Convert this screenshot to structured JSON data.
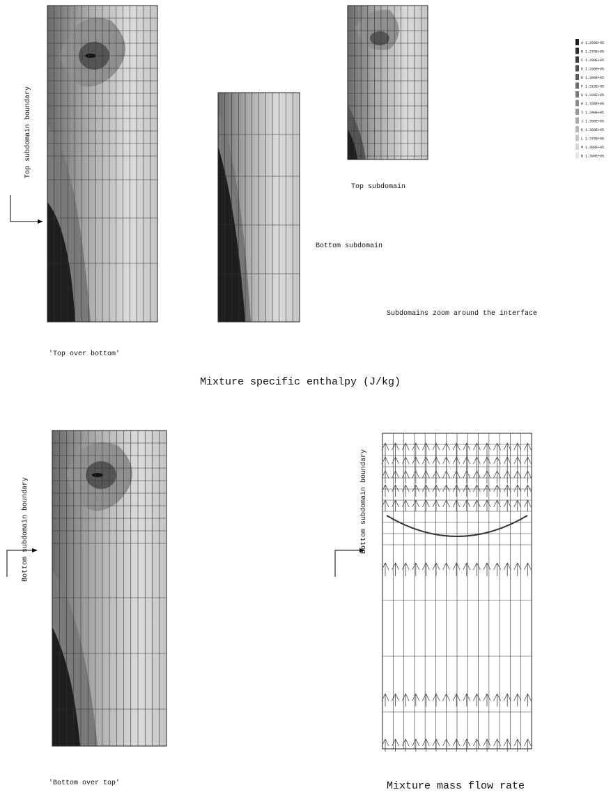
{
  "labels": {
    "top_boundary": "Top subdomain boundary",
    "top_subdomain": "Top subdomain",
    "bottom_subdomain": "Bottom subdomain",
    "zoom_note": "Subdomains zoom around the interface",
    "top_over_bottom": "'Top over bottom'",
    "enthalpy_title": "Mixture specific enthalpy (J/kg)",
    "bottom_boundary_left": "Bottom subdomain boundary",
    "bottom_boundary_right": "Bottom subdomain boundary",
    "bottom_over_top": "'Bottom over top'",
    "flow_title": "Mixture mass flow rate"
  },
  "legend": [
    {
      "key": "A",
      "label": "1.260E+05"
    },
    {
      "key": "B",
      "label": "1.270E+05"
    },
    {
      "key": "C",
      "label": "1.280E+05"
    },
    {
      "key": "D",
      "label": "1.290E+05"
    },
    {
      "key": "E",
      "label": "1.300E+05"
    },
    {
      "key": "F",
      "label": "1.310E+05"
    },
    {
      "key": "G",
      "label": "1.320E+05"
    },
    {
      "key": "H",
      "label": "1.330E+05"
    },
    {
      "key": "I",
      "label": "1.340E+05"
    },
    {
      "key": "J",
      "label": "1.350E+05"
    },
    {
      "key": "K",
      "label": "1.360E+05"
    },
    {
      "key": "L",
      "label": "1.370E+05"
    },
    {
      "key": "M",
      "label": "1.380E+05"
    },
    {
      "key": "N",
      "label": "1.390E+05"
    }
  ]
}
